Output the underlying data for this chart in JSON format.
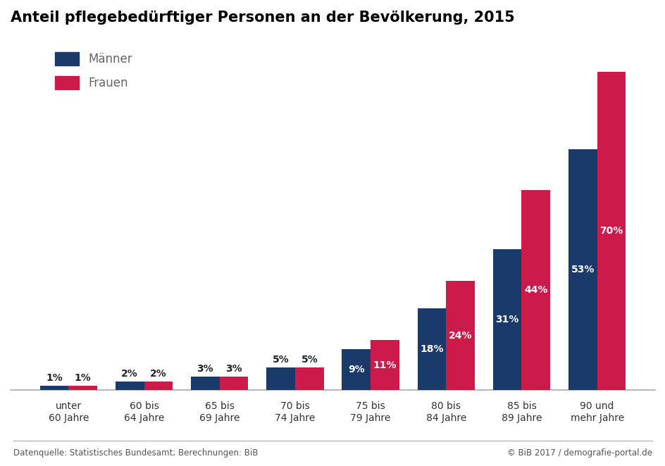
{
  "title": "Anteil pflegebedürftiger Personen an der Bevölkerung, 2015",
  "categories": [
    "unter\n60 Jahre",
    "60 bis\n64 Jahre",
    "65 bis\n69 Jahre",
    "70 bis\n74 Jahre",
    "75 bis\n79 Jahre",
    "80 bis\n84 Jahre",
    "85 bis\n89 Jahre",
    "90 und\nmehr Jahre"
  ],
  "maenner": [
    1,
    2,
    3,
    5,
    9,
    18,
    31,
    53
  ],
  "frauen": [
    1,
    2,
    3,
    5,
    11,
    24,
    44,
    70
  ],
  "color_maenner": "#1a3a6b",
  "color_frauen": "#cc1a4a",
  "bar_width": 0.38,
  "ylim": [
    0,
    78
  ],
  "legend_maenner": "Männer",
  "legend_frauen": "Frauen",
  "footer_left": "Datenquelle: Statistisches Bundesamt; Berechnungen: BiB",
  "footer_right": "© BiB 2017 / demografie-portal.de",
  "background_color": "#ffffff",
  "title_fontsize": 15,
  "label_fontsize": 10,
  "tick_fontsize": 10,
  "footer_fontsize": 8.5,
  "legend_fontsize": 12,
  "legend_text_color": "#666666",
  "outside_label_color": "#222222",
  "inside_label_color": "#ffffff",
  "spine_color": "#aaaaaa"
}
